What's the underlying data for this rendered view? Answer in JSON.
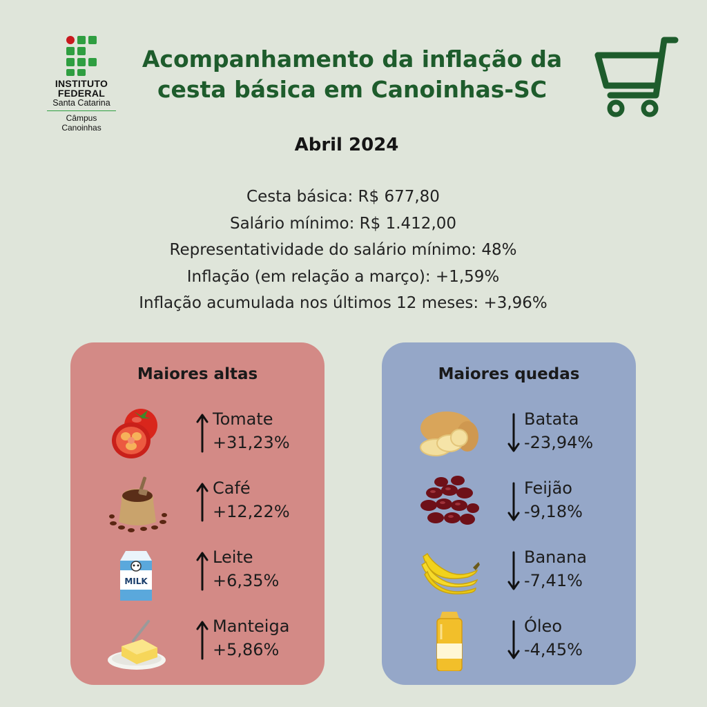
{
  "logo": {
    "line1": "INSTITUTO",
    "line2": "FEDERAL",
    "line3": "Santa Catarina",
    "line4": "Câmpus",
    "line5": "Canoinhas"
  },
  "header": {
    "title_line1": "Acompanhamento da inflação da",
    "title_line2": "cesta básica em Canoinhas-SC",
    "icon": "shopping-cart-icon",
    "accent_color": "#1e5c2c"
  },
  "month": "Abril 2024",
  "stats": [
    "Cesta básica: R$ 677,80",
    "Salário mínimo: R$ 1.412,00",
    "Representatividade do salário mínimo: 48%",
    "Inflação (em relação a março): +1,59%",
    "Inflação acumulada nos últimos 12 meses: +3,96%"
  ],
  "altas": {
    "title": "Maiores altas",
    "color": "#d38a86",
    "items": [
      {
        "name": "Tomate",
        "change": "+31,23%",
        "icon": "tomato-icon"
      },
      {
        "name": "Café",
        "change": "+12,22%",
        "icon": "coffee-beans-icon"
      },
      {
        "name": "Leite",
        "change": "+6,35%",
        "icon": "milk-carton-icon"
      },
      {
        "name": "Manteiga",
        "change": "+5,86%",
        "icon": "butter-icon"
      }
    ]
  },
  "quedas": {
    "title": "Maiores quedas",
    "color": "#95a7c8",
    "items": [
      {
        "name": "Batata",
        "change": "-23,94%",
        "icon": "potato-icon"
      },
      {
        "name": "Feijão",
        "change": "-9,18%",
        "icon": "beans-icon"
      },
      {
        "name": "Banana",
        "change": "-7,41%",
        "icon": "banana-icon"
      },
      {
        "name": "Óleo",
        "change": "-4,45%",
        "icon": "oil-bottle-icon"
      }
    ]
  },
  "milk_label": "MILK"
}
